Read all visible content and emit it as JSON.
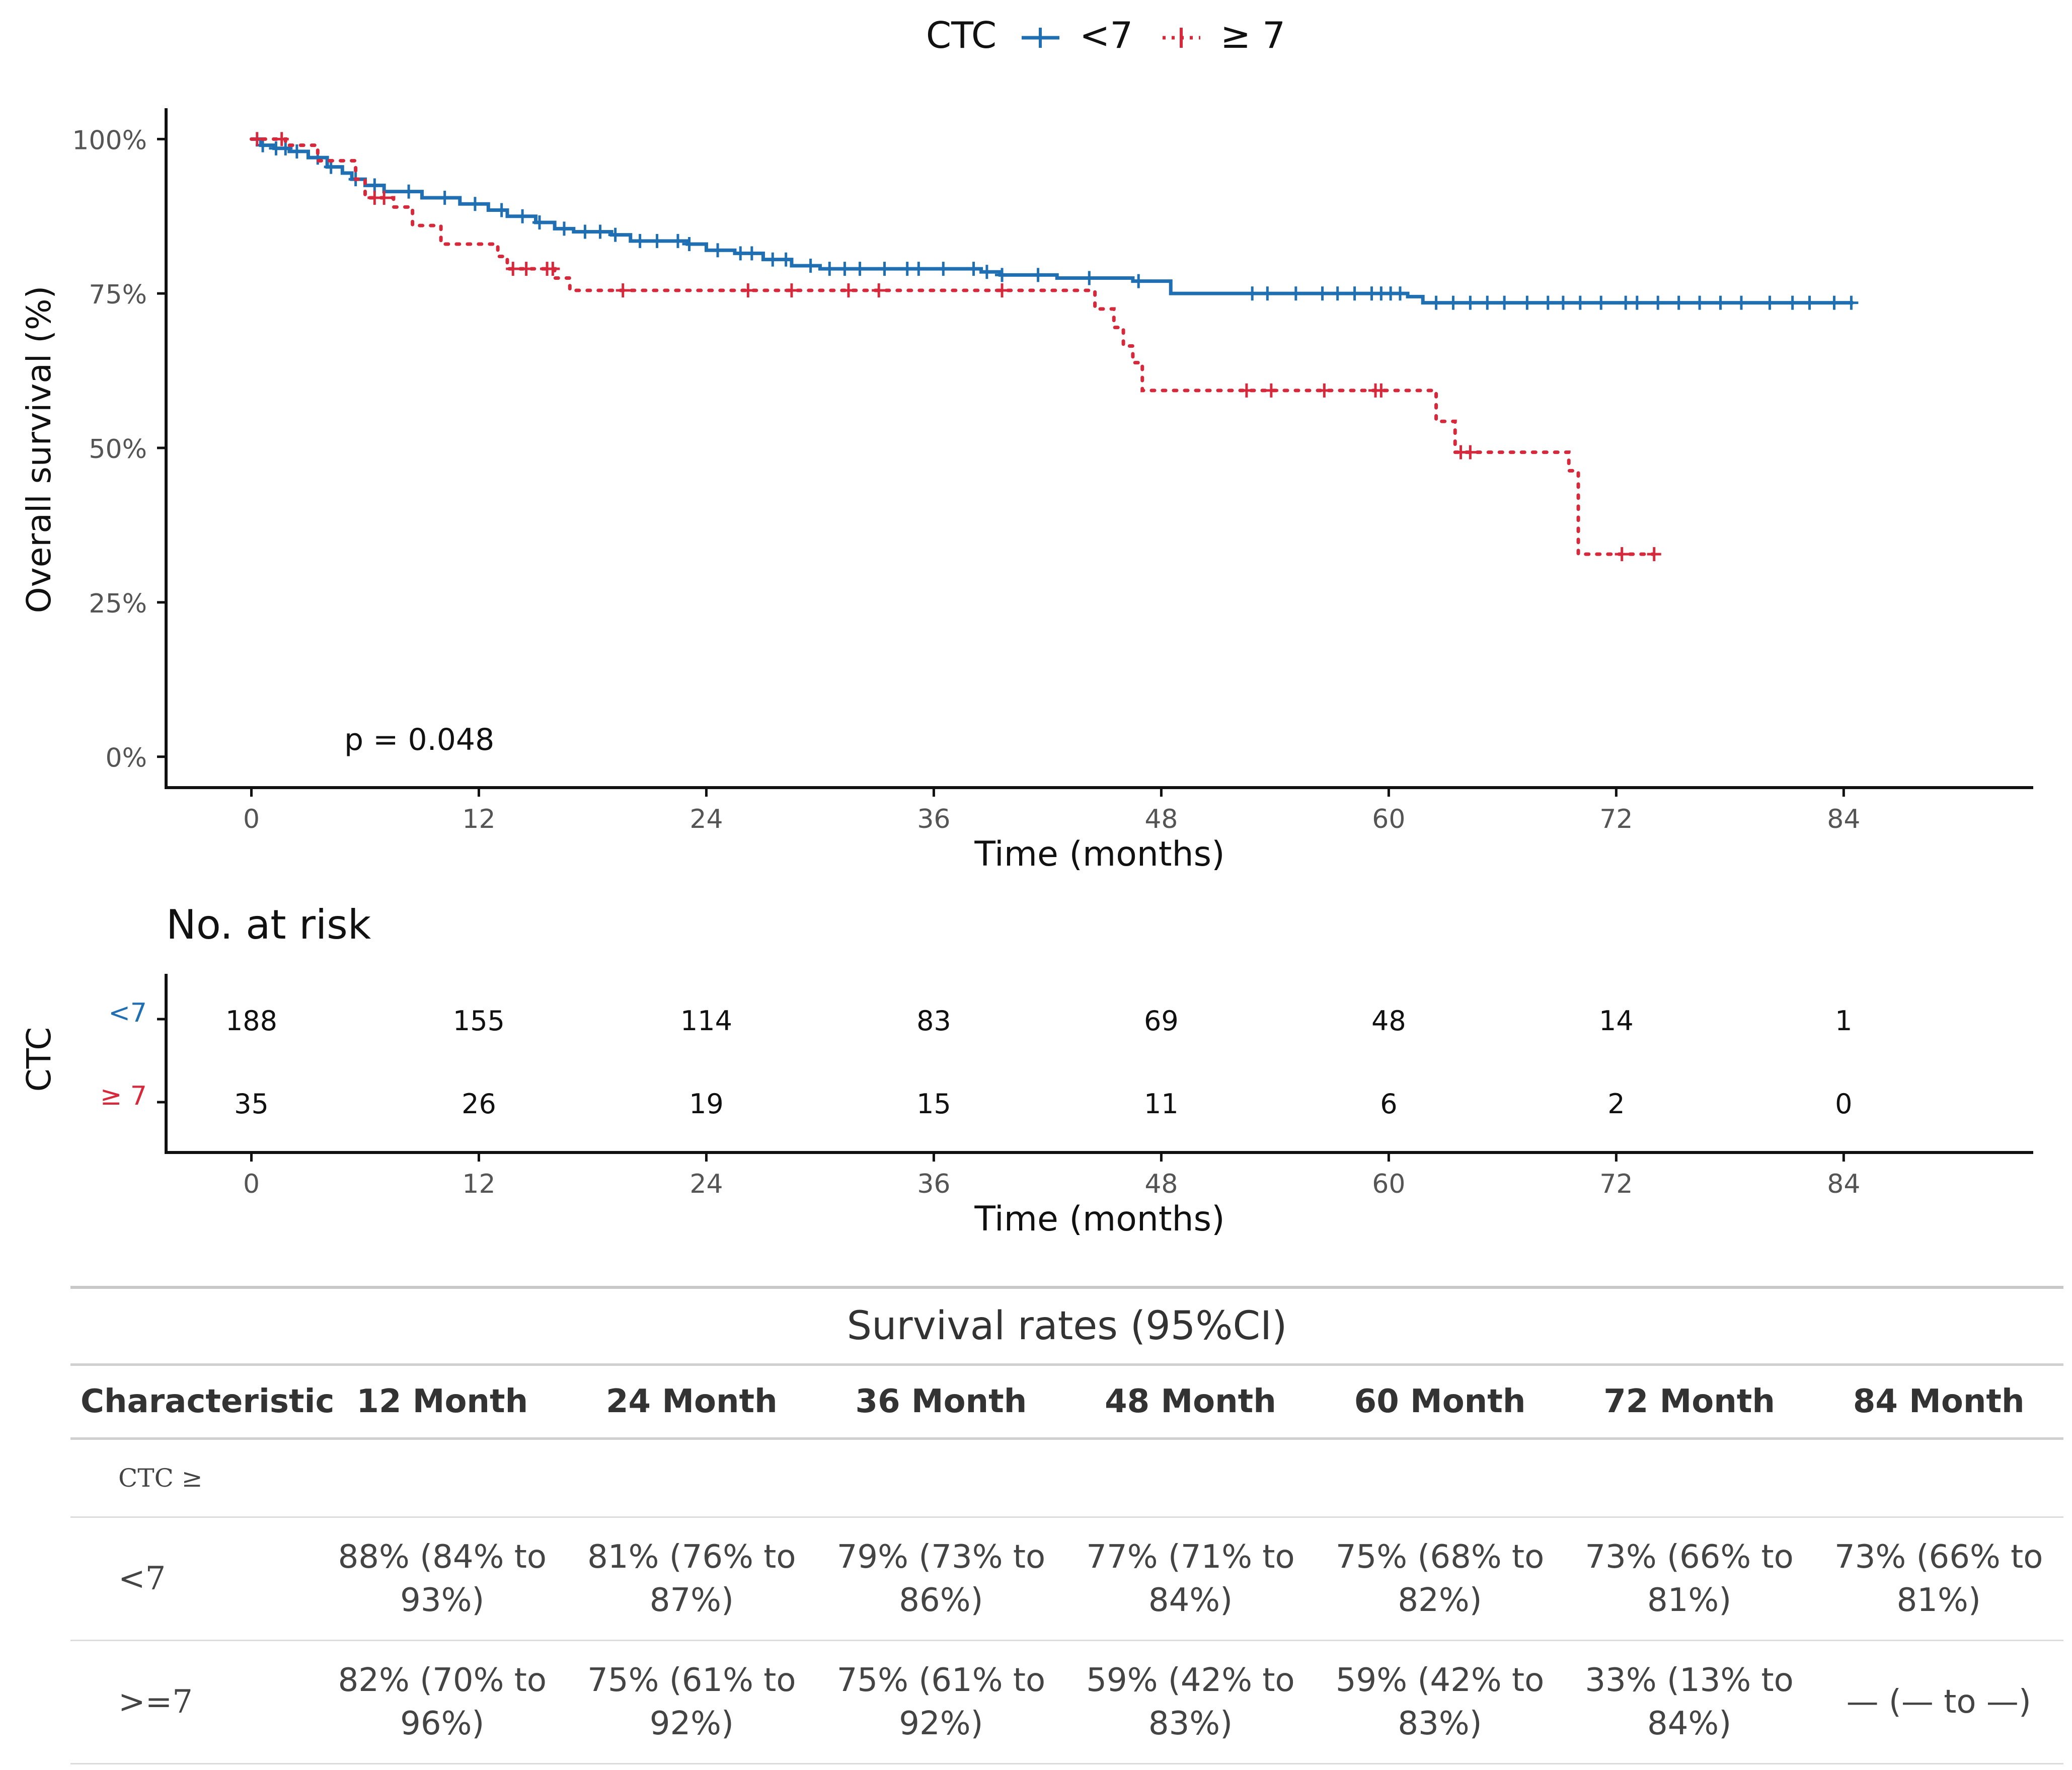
{
  "chart_data": {
    "type": "line",
    "subtype": "kaplan-meier",
    "legend": {
      "title": "CTC",
      "placement": "top",
      "entries": [
        "<7",
        "≥ 7"
      ]
    },
    "ylabel": "Overall survival (%)",
    "xlabel": "Time (months)",
    "xlim": [
      -4.5,
      94
    ],
    "ylim": [
      -0.05,
      1.05
    ],
    "x_ticks": [
      0,
      12,
      24,
      36,
      48,
      60,
      72,
      84
    ],
    "y_ticks": [
      {
        "value": 0,
        "label": "0%"
      },
      {
        "value": 0.25,
        "label": "25%"
      },
      {
        "value": 0.5,
        "label": "50%"
      },
      {
        "value": 0.75,
        "label": "75%"
      },
      {
        "value": 1.0,
        "label": "100%"
      }
    ],
    "annotation": "p = 0.048",
    "series": [
      {
        "name": "<7",
        "color": "#1f6fb2",
        "style": "solid",
        "steps": [
          [
            0,
            1.0
          ],
          [
            0.5,
            0.99
          ],
          [
            1.2,
            0.985
          ],
          [
            2,
            0.98
          ],
          [
            3,
            0.97
          ],
          [
            4,
            0.955
          ],
          [
            4.8,
            0.945
          ],
          [
            5.3,
            0.935
          ],
          [
            6,
            0.925
          ],
          [
            7,
            0.915
          ],
          [
            9,
            0.905
          ],
          [
            11,
            0.895
          ],
          [
            12.5,
            0.885
          ],
          [
            13.5,
            0.875
          ],
          [
            15,
            0.865
          ],
          [
            16,
            0.855
          ],
          [
            17,
            0.85
          ],
          [
            19,
            0.845
          ],
          [
            20,
            0.835
          ],
          [
            23,
            0.83
          ],
          [
            24,
            0.82
          ],
          [
            25.5,
            0.815
          ],
          [
            27,
            0.805
          ],
          [
            28.5,
            0.795
          ],
          [
            30,
            0.79
          ],
          [
            38.5,
            0.785
          ],
          [
            39.5,
            0.78
          ],
          [
            42.5,
            0.775
          ],
          [
            46.5,
            0.77
          ],
          [
            48.5,
            0.75
          ],
          [
            61,
            0.745
          ],
          [
            61.8,
            0.735
          ],
          [
            84.5,
            0.735
          ]
        ],
        "censored": [
          0.6,
          1.3,
          1.8,
          2.4,
          3.5,
          4.2,
          5.5,
          6.5,
          8.3,
          10.2,
          11.8,
          13.2,
          14.3,
          15.2,
          16.5,
          17.6,
          18.4,
          19.2,
          20.5,
          21.4,
          22.5,
          23.1,
          24.6,
          25.8,
          26.4,
          27.5,
          28.2,
          29.5,
          30.5,
          31.3,
          32.1,
          33.4,
          34.6,
          35.2,
          36.5,
          38.1,
          38.8,
          39.6,
          41.5,
          44.2,
          46.8,
          52.8,
          53.6,
          55.1,
          56.5,
          57.3,
          58.2,
          59.1,
          59.6,
          60.1,
          60.6,
          62.5,
          63.4,
          64.3,
          65.2,
          66.1,
          67.3,
          68.4,
          69.2,
          70.1,
          71.2,
          72.5,
          73.1,
          74.2,
          75.3,
          76.4,
          77.5,
          78.6,
          80.1,
          81.3,
          82.2,
          83.5,
          84.4
        ]
      },
      {
        "name": "≥ 7",
        "color": "#d6293c",
        "style": "dotted",
        "steps": [
          [
            0,
            1.0
          ],
          [
            1.8,
            0.99
          ],
          [
            3.5,
            0.965
          ],
          [
            5.5,
            0.935
          ],
          [
            6,
            0.905
          ],
          [
            7.5,
            0.89
          ],
          [
            8.5,
            0.86
          ],
          [
            10,
            0.83
          ],
          [
            13,
            0.81
          ],
          [
            13.5,
            0.79
          ],
          [
            16,
            0.775
          ],
          [
            16.8,
            0.755
          ],
          [
            44.5,
            0.725
          ],
          [
            45.5,
            0.695
          ],
          [
            46,
            0.665
          ],
          [
            46.5,
            0.638
          ],
          [
            47,
            0.593
          ],
          [
            62.5,
            0.543
          ],
          [
            63.5,
            0.493
          ],
          [
            69.5,
            0.463
          ],
          [
            70,
            0.328
          ],
          [
            74,
            0.328
          ]
        ],
        "censored": [
          0.3,
          1.6,
          6.5,
          7.0,
          13.8,
          14.5,
          15.6,
          15.9,
          19.6,
          26.2,
          28.5,
          31.5,
          33.1,
          39.6,
          52.5,
          53.8,
          56.6,
          59.3,
          59.6,
          63.8,
          64.3,
          72.3,
          74.0
        ]
      }
    ],
    "risk_table": {
      "title": "No. at risk",
      "ylabel": "CTC",
      "xlabel": "Time (months)",
      "times": [
        0,
        12,
        24,
        36,
        48,
        60,
        72,
        84
      ],
      "rows": [
        {
          "label": "<7",
          "color": "#1f6fb2",
          "values": [
            188,
            155,
            114,
            83,
            69,
            48,
            14,
            1
          ]
        },
        {
          "label": "≥ 7",
          "color": "#d6293c",
          "values": [
            35,
            26,
            19,
            15,
            11,
            6,
            2,
            0
          ]
        }
      ]
    }
  },
  "survival_table": {
    "title": "Survival rates (95%CI)",
    "headers": [
      "Characteristic",
      "12 Month",
      "24 Month",
      "36 Month",
      "48 Month",
      "60 Month",
      "72 Month",
      "84 Month"
    ],
    "group_label": "CTC ≥",
    "rows": [
      {
        "label": "<7",
        "cells": [
          "88% (84% to 93%)",
          "81% (76% to 87%)",
          "79% (73% to 86%)",
          "77% (71% to 84%)",
          "75% (68% to 82%)",
          "73% (66% to 81%)",
          "73% (66% to 81%)"
        ]
      },
      {
        "label": ">=7",
        "cells": [
          "82% (70% to 96%)",
          "75% (61% to 92%)",
          "75% (61% to 92%)",
          "59% (42% to 83%)",
          "59% (42% to 83%)",
          "33% (13% to 84%)",
          "— (— to —)"
        ]
      }
    ]
  }
}
